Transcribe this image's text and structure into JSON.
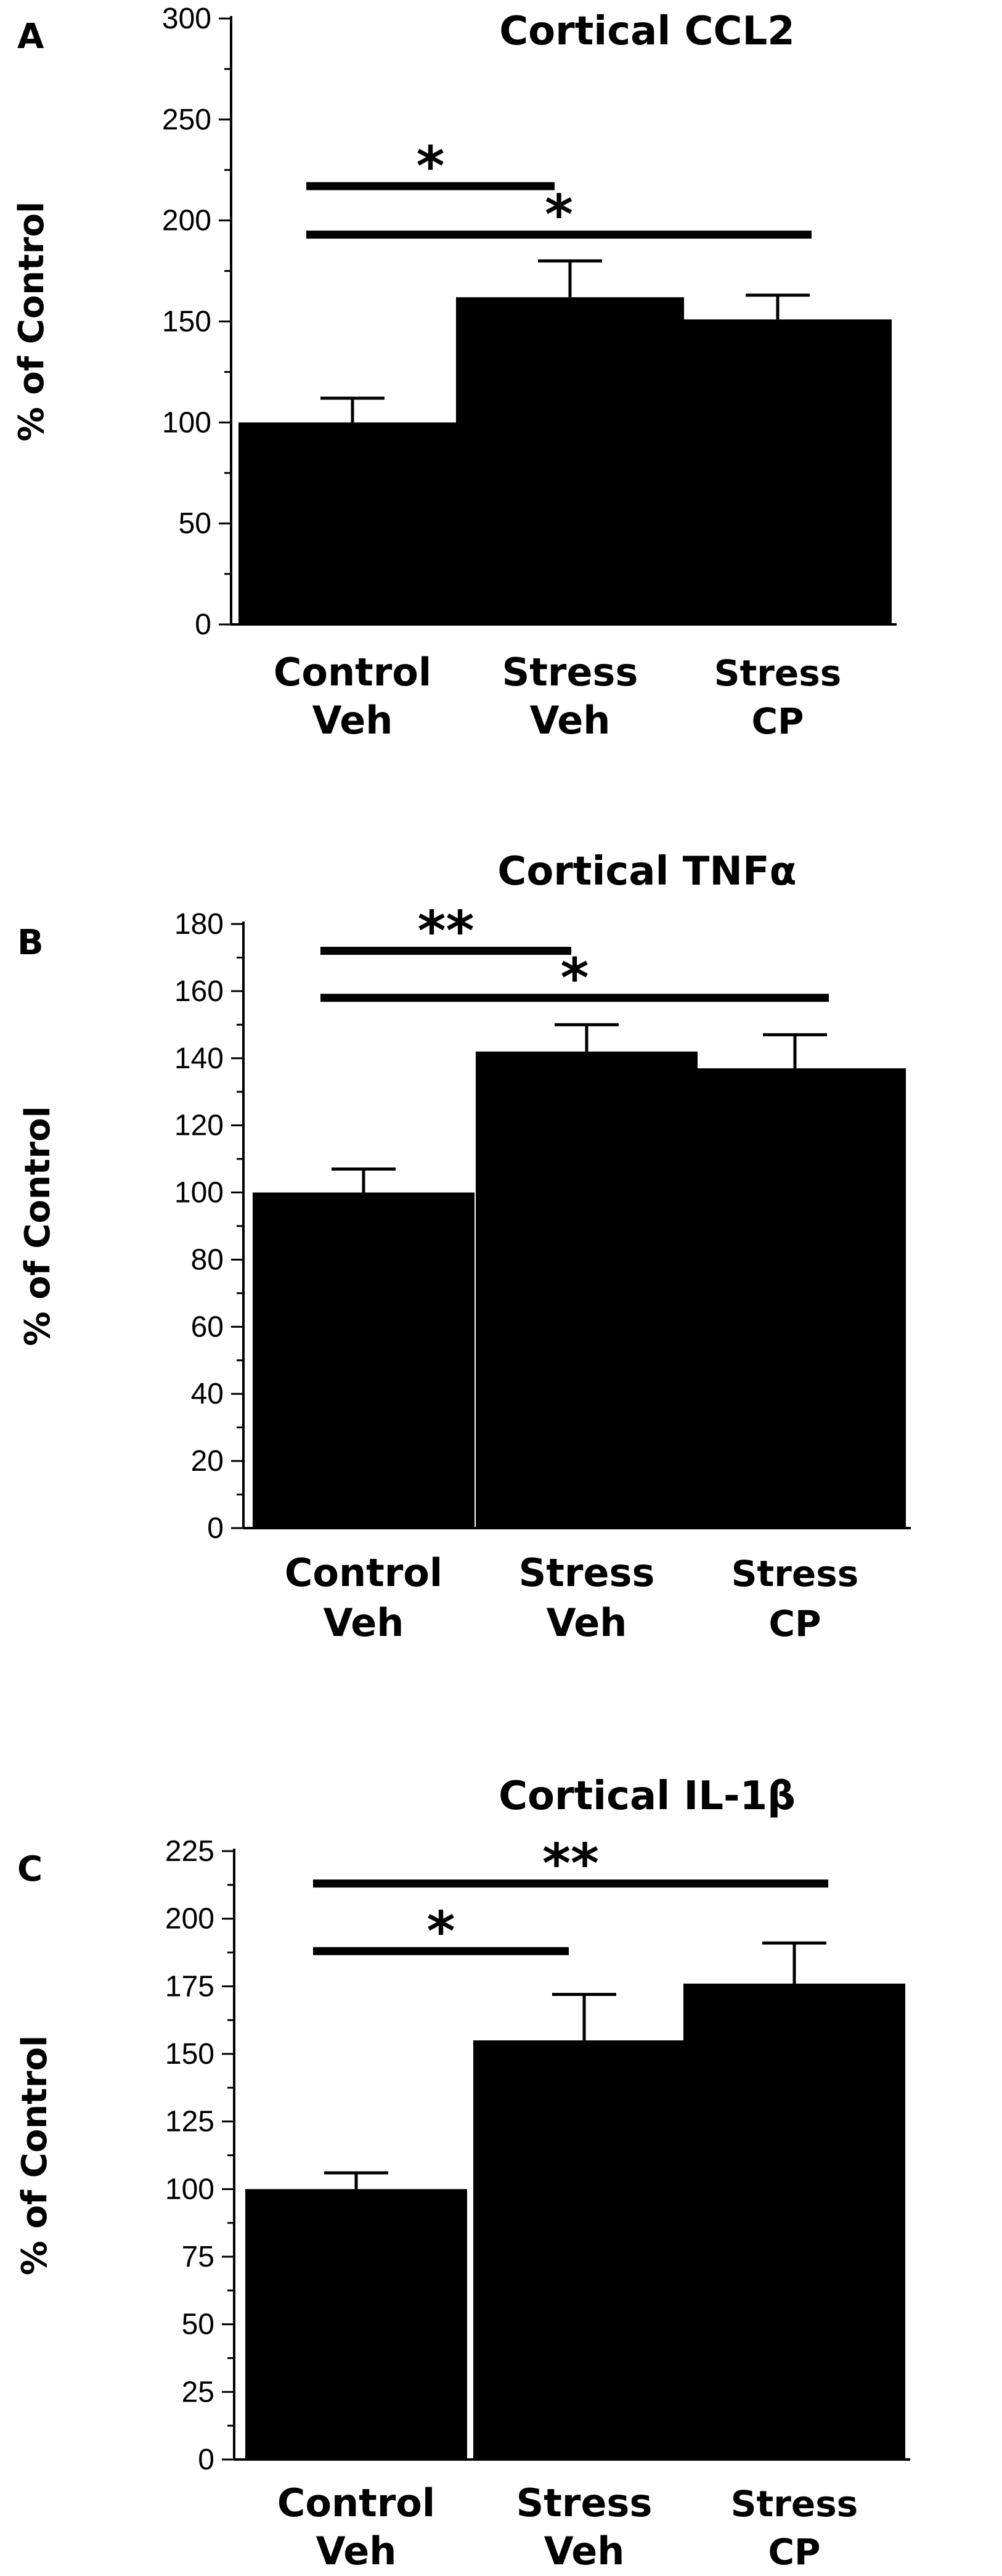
{
  "chart_data": [
    {
      "panel": "A",
      "type": "bar",
      "title": "Cortical CCL2",
      "xlabel": "",
      "ylabel": "% of Control",
      "ylim": [
        0,
        300
      ],
      "yticks": [
        0,
        50,
        100,
        150,
        200,
        250,
        300
      ],
      "categories": [
        {
          "line1": "Control",
          "line2": "Veh"
        },
        {
          "line1": "Stress",
          "line2": "Veh"
        },
        {
          "line1": "Stress",
          "line2": "CP"
        }
      ],
      "values": [
        100,
        162,
        151
      ],
      "errors": [
        12,
        18,
        12
      ],
      "significance": [
        {
          "from": 0,
          "to": 1,
          "label": "*",
          "y": 217
        },
        {
          "from": 0,
          "to": 2,
          "label": "*",
          "y": 193
        }
      ]
    },
    {
      "panel": "B",
      "type": "bar",
      "title": "Cortical TNFα",
      "xlabel": "",
      "ylabel": "% of Control",
      "ylim": [
        0,
        180
      ],
      "yticks": [
        0,
        20,
        40,
        60,
        80,
        100,
        120,
        140,
        160,
        180
      ],
      "categories": [
        {
          "line1": "Control",
          "line2": "Veh"
        },
        {
          "line1": "Stress",
          "line2": "Veh"
        },
        {
          "line1": "Stress",
          "line2": "CP"
        }
      ],
      "values": [
        100,
        142,
        137
      ],
      "errors": [
        7,
        8,
        10
      ],
      "significance": [
        {
          "from": 0,
          "to": 1,
          "label": "**",
          "y": 172
        },
        {
          "from": 0,
          "to": 2,
          "label": "*",
          "y": 158
        }
      ]
    },
    {
      "panel": "C",
      "type": "bar",
      "title": "Cortical IL-1β",
      "xlabel": "",
      "ylabel": "% of Control",
      "ylim": [
        0,
        225
      ],
      "yticks": [
        0,
        25,
        50,
        75,
        100,
        125,
        150,
        175,
        200,
        225
      ],
      "categories": [
        {
          "line1": "Control",
          "line2": "Veh"
        },
        {
          "line1": "Stress",
          "line2": "Veh"
        },
        {
          "line1": "Stress",
          "line2": "CP"
        }
      ],
      "values": [
        100,
        155,
        176
      ],
      "errors": [
        6,
        17,
        15
      ],
      "significance": [
        {
          "from": 0,
          "to": 2,
          "label": "**",
          "y": 213
        },
        {
          "from": 0,
          "to": 1,
          "label": "*",
          "y": 188
        }
      ]
    }
  ],
  "colors": {
    "bar": "#000000",
    "axis": "#000000",
    "background": "#ffffff"
  }
}
